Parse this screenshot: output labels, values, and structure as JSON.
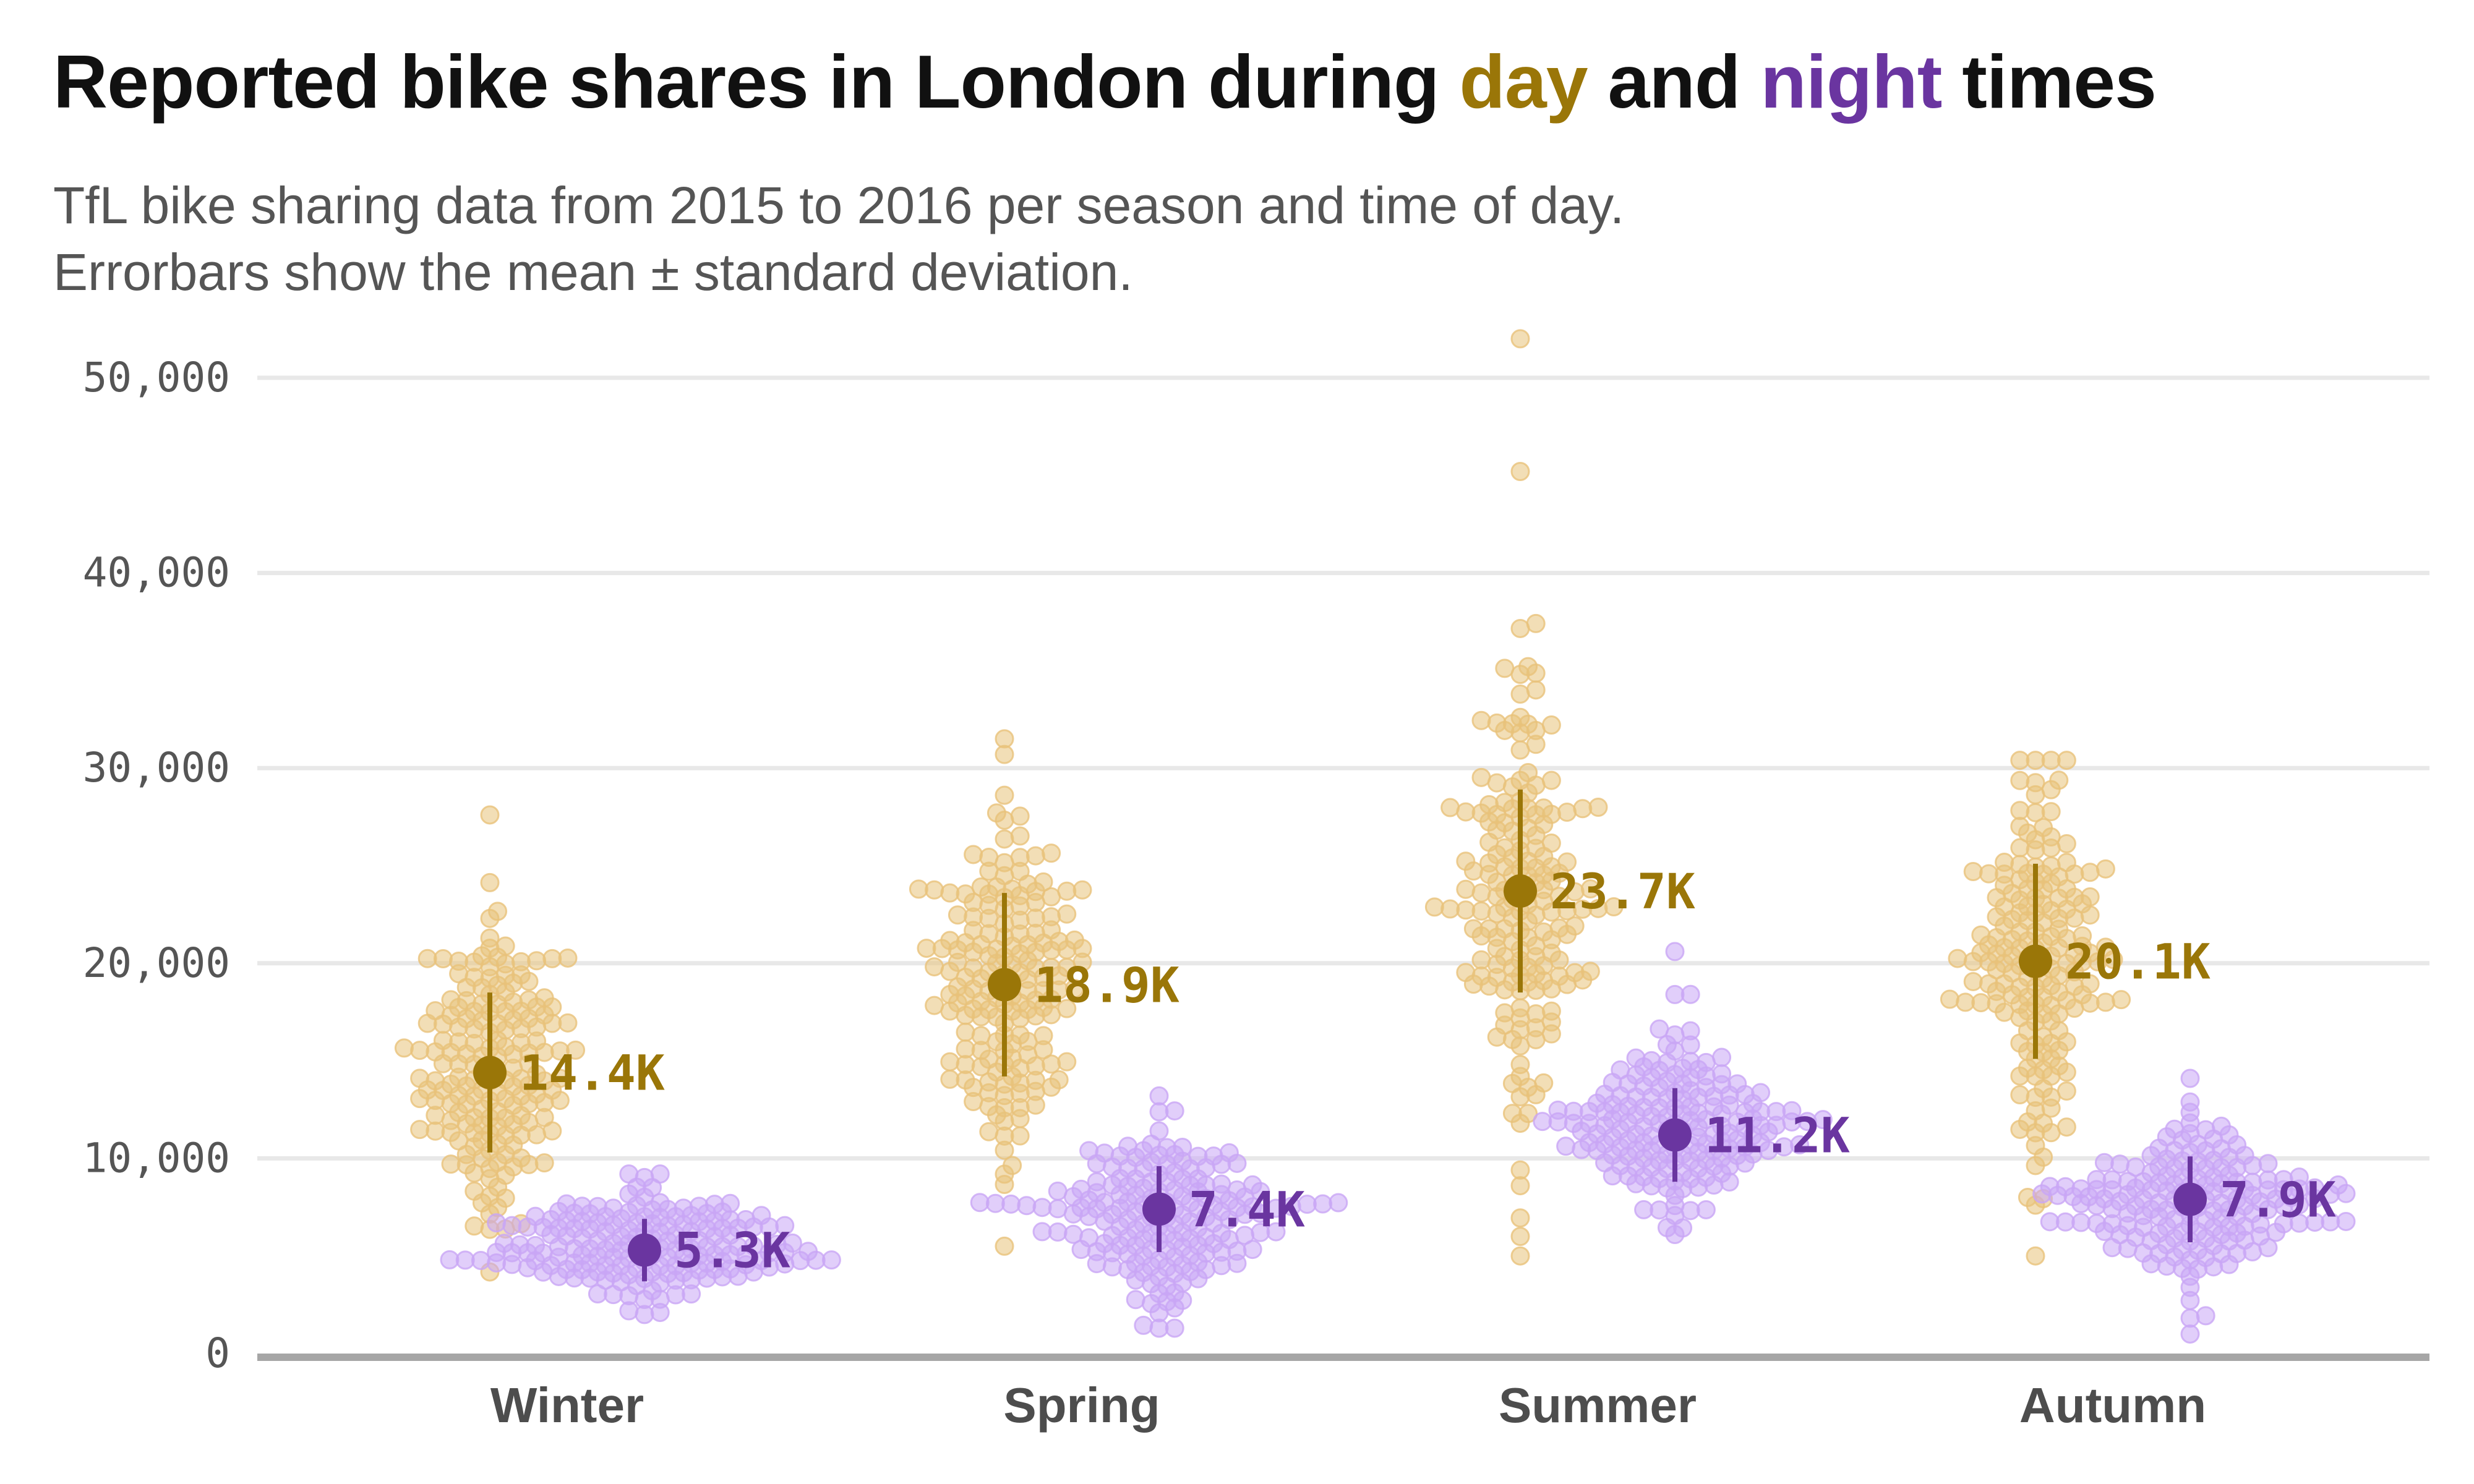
{
  "title": {
    "prefix": "Reported bike shares in London during ",
    "day_word": "day",
    "middle": " and ",
    "night_word": "night",
    "suffix": " times"
  },
  "subtitle": {
    "line1": "TfL bike sharing data from 2015 to 2016 per season and time of day.",
    "line2": "Errorbars show the mean ± standard deviation."
  },
  "colors": {
    "day_point": "#e8c27a",
    "day_accent": "#9a7608",
    "night_point": "#c9a6f5",
    "night_accent": "#6a35a0",
    "grid": "#e8e8e8",
    "axis": "#a6a6a6"
  },
  "chart_data": {
    "type": "scatter",
    "subtype": "beeswarm with mean ± sd errorbars",
    "title": "Reported bike shares in London during day and night times",
    "subtitle": "TfL bike sharing data from 2015 to 2016 per season and time of day. Errorbars show the mean ± standard deviation.",
    "xlabel": "",
    "ylabel": "",
    "categories": [
      "Winter",
      "Spring",
      "Summer",
      "Autumn"
    ],
    "ylim": [
      0,
      52000
    ],
    "yticks": [
      0,
      10000,
      20000,
      30000,
      40000,
      50000
    ],
    "ytick_labels": [
      "0",
      "10,000",
      "20,000",
      "30,000",
      "40,000",
      "50,000"
    ],
    "grid": true,
    "legend": "none (encoded in title colors)",
    "series": [
      {
        "name": "day",
        "mean": [
          14400,
          18900,
          23700,
          20100
        ],
        "sd": [
          4100,
          4700,
          5200,
          5000
        ],
        "labels": [
          "14.4K",
          "18.9K",
          "23.7K",
          "20.1K"
        ],
        "min": [
          3000,
          5500,
          5000,
          5000
        ],
        "max": [
          27600,
          31500,
          52000,
          30400
        ],
        "outliers": [
          [
            27600
          ],
          [
            31500,
            30700,
            27700
          ],
          [
            52000,
            45200,
            14200,
            12300,
            11800,
            8600,
            6000,
            5000
          ],
          [
            30400,
            8000,
            5000
          ]
        ],
        "n_points": 180
      },
      {
        "name": "night",
        "mean": [
          5300,
          7400,
          11200,
          7900
        ],
        "sd": [
          1600,
          2200,
          2400,
          2200
        ],
        "labels": [
          "5.3K",
          "7.4K",
          "11.2K",
          "7.9K"
        ],
        "min": [
          2000,
          1300,
          4800,
          1000
        ],
        "max": [
          9200,
          13200,
          20600,
          14100
        ],
        "outliers": [
          [
            9200
          ],
          [
            13200,
            1300
          ],
          [
            20600,
            18400
          ],
          [
            14100,
            1000
          ]
        ],
        "n_points": 180
      }
    ]
  }
}
